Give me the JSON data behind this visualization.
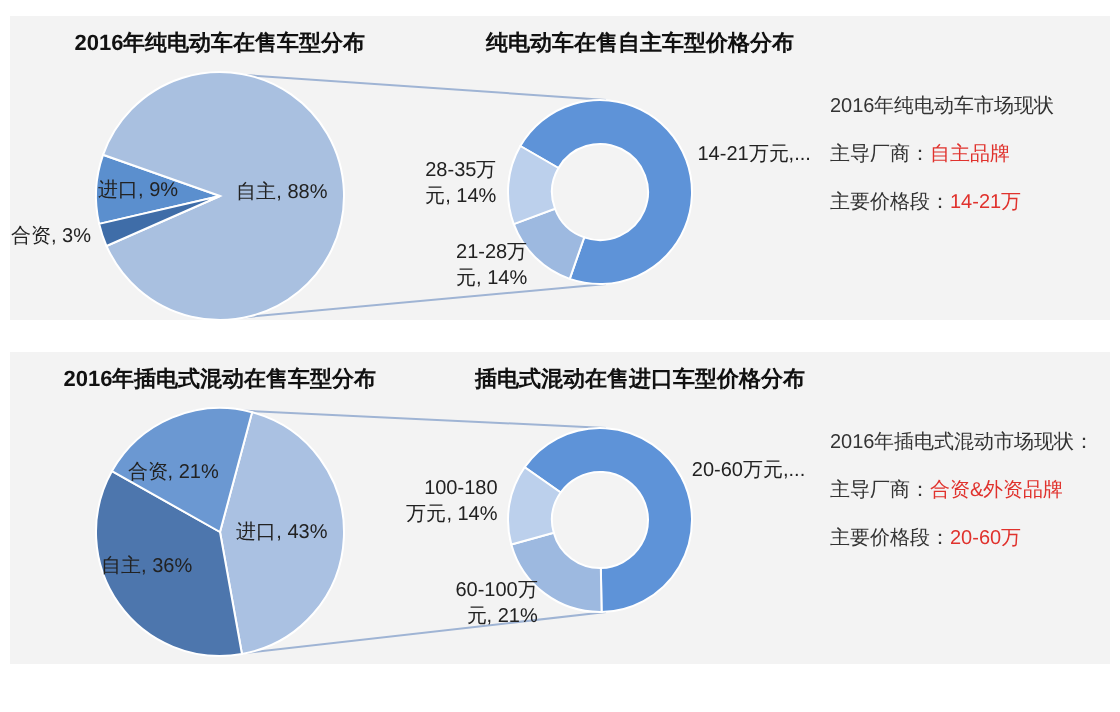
{
  "chart_data": [
    {
      "type": "pie",
      "title": "2016年纯电动车在售车型分布",
      "categories": [
        "进口",
        "自主",
        "合资"
      ],
      "values": [
        9,
        88,
        3
      ],
      "colors": [
        "#5b8fce",
        "#a9c0e0",
        "#3f6da8"
      ],
      "value_labels": [
        "9%",
        "88%",
        "3%"
      ]
    },
    {
      "type": "donut",
      "title": "纯电动车在售自主车型价格分布",
      "categories": [
        "14-21万元,...",
        "21-28万元",
        "28-35万元"
      ],
      "values": [
        72,
        14,
        14
      ],
      "colors": [
        "#5e93d8",
        "#9db9e0",
        "#bcd0ec"
      ],
      "value_labels": [
        null,
        "14%",
        "14%"
      ]
    },
    {
      "type": "other",
      "title": "2016年纯电动车市场现状",
      "annotations": [
        "主导厂商：",
        "自主品牌",
        "主要价格段：",
        "14-21万"
      ]
    },
    {
      "type": "pie",
      "title": "2016年插电式混动在售车型分布",
      "categories": [
        "进口",
        "自主",
        "合资"
      ],
      "values": [
        43,
        36,
        21
      ],
      "colors": [
        "#aac1e2",
        "#4d76ad",
        "#6b98d2"
      ],
      "value_labels": [
        "43%",
        "36%",
        "21%"
      ]
    },
    {
      "type": "donut",
      "title": "插电式混动在售进口车型价格分布",
      "categories": [
        "20-60万元,...",
        "60-100万元",
        "100-180万元"
      ],
      "values": [
        65,
        21,
        14
      ],
      "colors": [
        "#5e93d8",
        "#9db9e0",
        "#bcd0ec"
      ],
      "value_labels": [
        null,
        "21%",
        "14%"
      ]
    },
    {
      "type": "other",
      "title": "2016年插电式混动市场现状：",
      "annotations": [
        "主导厂商：",
        "合资&外资品牌",
        "主要价格段：",
        "20-60万"
      ]
    }
  ]
}
